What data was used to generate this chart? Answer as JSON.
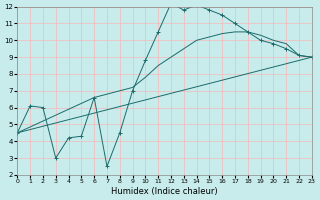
{
  "xlabel": "Humidex (Indice chaleur)",
  "bg_color": "#c8ecec",
  "line_color": "#1a6b6b",
  "grid_color": "#f5b8b8",
  "xlim": [
    0,
    23
  ],
  "ylim": [
    2,
    12
  ],
  "xticks": [
    0,
    1,
    2,
    3,
    4,
    5,
    6,
    7,
    8,
    9,
    10,
    11,
    12,
    13,
    14,
    15,
    16,
    17,
    18,
    19,
    20,
    21,
    22,
    23
  ],
  "yticks": [
    2,
    3,
    4,
    5,
    6,
    7,
    8,
    9,
    10,
    11,
    12
  ],
  "series1": [
    [
      0,
      4.5
    ],
    [
      1,
      6.1
    ],
    [
      2,
      6.0
    ],
    [
      3,
      3.0
    ],
    [
      4,
      4.2
    ],
    [
      5,
      4.3
    ],
    [
      6,
      6.6
    ],
    [
      7,
      2.5
    ],
    [
      8,
      4.5
    ],
    [
      9,
      7.0
    ],
    [
      10,
      8.8
    ],
    [
      11,
      10.5
    ],
    [
      12,
      12.2
    ],
    [
      13,
      11.8
    ],
    [
      14,
      12.1
    ],
    [
      15,
      11.8
    ],
    [
      16,
      11.5
    ],
    [
      17,
      11.0
    ],
    [
      18,
      10.5
    ],
    [
      19,
      10.0
    ],
    [
      20,
      9.8
    ],
    [
      21,
      9.5
    ],
    [
      22,
      9.1
    ],
    [
      23,
      9.0
    ]
  ],
  "series2": [
    [
      0,
      4.5
    ],
    [
      6,
      6.6
    ],
    [
      9,
      7.2
    ],
    [
      10,
      7.8
    ],
    [
      11,
      8.5
    ],
    [
      12,
      9.0
    ],
    [
      13,
      9.5
    ],
    [
      14,
      10.0
    ],
    [
      15,
      10.2
    ],
    [
      16,
      10.4
    ],
    [
      17,
      10.5
    ],
    [
      18,
      10.5
    ],
    [
      19,
      10.3
    ],
    [
      20,
      10.0
    ],
    [
      21,
      9.8
    ],
    [
      22,
      9.1
    ],
    [
      23,
      9.0
    ]
  ],
  "series3": [
    [
      0,
      4.5
    ],
    [
      23,
      9.0
    ]
  ]
}
